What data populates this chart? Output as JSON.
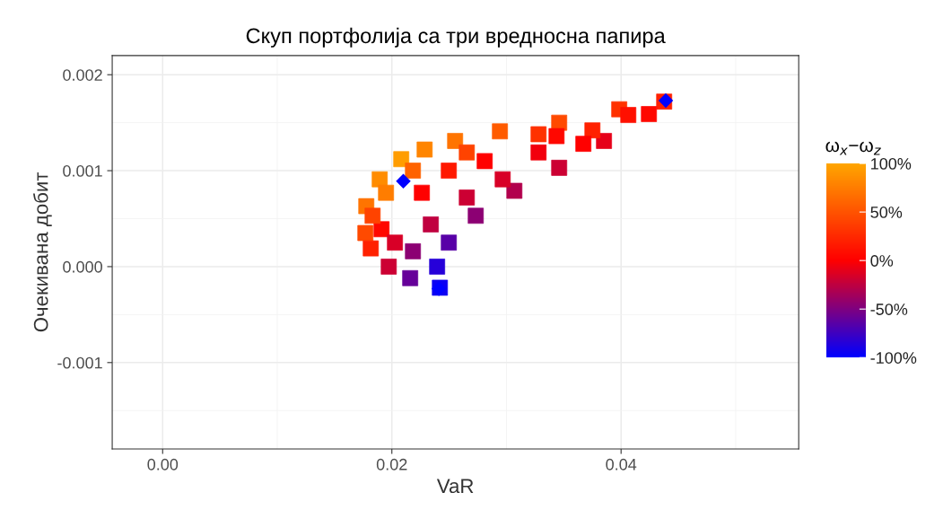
{
  "chart_data": {
    "type": "scatter",
    "title": "Скуп портфолија са три вредносна папира",
    "xlabel": "VaR",
    "ylabel": "Очекивана добит",
    "clabel": "ω$_{x}$−ω$_{z}$",
    "xlim": [
      -0.0044,
      0.0555
    ],
    "ylim": [
      -0.0019,
      0.0022
    ],
    "xticks": [
      {
        "value": 0,
        "label": "0.00"
      },
      {
        "value": 0.02,
        "label": "0.02"
      },
      {
        "value": 0.04,
        "label": "0.04"
      }
    ],
    "yticks": [
      -0.001,
      {
        "value": 0,
        "label": "0.000"
      },
      0.001,
      0.002
    ],
    "clim": [
      -100,
      100
    ],
    "cticks": [
      {
        "value": -100,
        "label": "-100%"
      },
      {
        "value": -50,
        "label": "-50%"
      },
      {
        "value": 0,
        "label": "0%"
      },
      {
        "value": 50,
        "label": "50%"
      },
      {
        "value": 100,
        "label": "100%"
      }
    ],
    "grid": true,
    "legend": false,
    "series": [
      {
        "marker": "square",
        "x": [
          0.04376,
          0.03984,
          0.0346,
          0.02943,
          0.02552,
          0.02286,
          0.02082,
          0.01894,
          0.01777,
          0.01769,
          0.01816,
          0.01973,
          0.0216,
          0.02419,
          0.02395,
          0.02497,
          0.02732,
          0.03069,
          0.0346,
          0.03851,
          0.04243,
          0.0191,
          0.02262,
          0.0281,
          0.03437,
          0.04063,
          0.02184,
          0.02027,
          0.02654,
          0.0328,
          0.02497,
          0.02184,
          0.02654,
          0.0328,
          0.01949,
          0.0234,
          0.01832,
          0.0375,
          0.03671,
          0.02967
        ],
        "values": [
          0.00172,
          0.00164,
          0.0015,
          0.00141,
          0.00131,
          0.00122,
          0.00112,
          0.00091,
          0.00063,
          0.00035,
          0.00019,
          0.0,
          -0.00012,
          -0.00022,
          0.0,
          0.00025,
          0.00053,
          0.00079,
          0.00103,
          0.00131,
          0.00159,
          0.00039,
          0.00077,
          0.0011,
          0.00136,
          0.00158,
          0.00016,
          0.00025,
          0.00072,
          0.00119,
          0.001,
          0.001,
          0.00119,
          0.00138,
          0.00077,
          0.00044,
          0.00053,
          0.00142,
          0.00128,
          0.00091
        ],
        "colors": [
          "#ff2100",
          "#ff3200",
          "#ff4a00",
          "#ff5b00",
          "#ff7300",
          "#ff8400",
          "#ff9d00",
          "#ff8c00",
          "#ff7300",
          "#ff4a00",
          "#ff2100",
          "#cc0033",
          "#660099",
          "#0d00f2",
          "#2600d9",
          "#5900a6",
          "#8c0073",
          "#b3004d",
          "#cc0033",
          "#e6001a",
          "#ff0800",
          "#ff0800",
          "#ff0000",
          "#ff0000",
          "#ff0800",
          "#ff1000",
          "#8c0073",
          "#d90026",
          "#cc0033",
          "#f2000d",
          "#ff1900",
          "#ff6300",
          "#ff4200",
          "#ff3200",
          "#ff7c00",
          "#bf0040",
          "#ff4200",
          "#ff2100",
          "#ff0000",
          "#d90026"
        ],
        "cvalues": [
          20,
          30,
          45,
          55,
          70,
          80,
          95,
          85,
          70,
          45,
          20,
          -20,
          -60,
          -95,
          -85,
          -65,
          -45,
          -30,
          -20,
          -10,
          5,
          5,
          0,
          0,
          5,
          10,
          -45,
          -15,
          -20,
          -5,
          15,
          60,
          40,
          30,
          75,
          -25,
          40,
          20,
          0,
          -15
        ]
      },
      {
        "marker": "diamond",
        "color": "#0000ff",
        "x": [
          0.021,
          0.0439,
          0.0241
        ],
        "values": [
          0.00089,
          0.00173,
          -0.00023
        ]
      }
    ]
  }
}
